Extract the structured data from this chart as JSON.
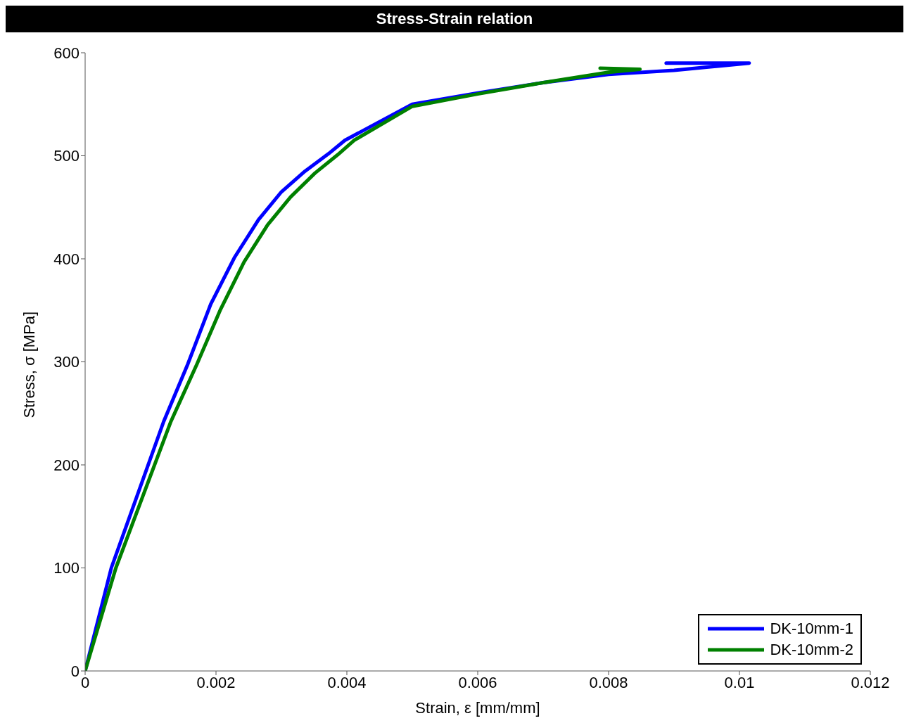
{
  "chart_data": {
    "type": "line",
    "title": "Stress-Strain relation",
    "xlabel": "Strain, ε [mm/mm]",
    "ylabel": "Stress, σ [MPa]",
    "xlim": [
      0,
      0.012
    ],
    "xticks": [
      0,
      0.002,
      0.004,
      0.006,
      0.008,
      0.01,
      0.012
    ],
    "ylim": [
      0,
      600
    ],
    "yticks": [
      0,
      100,
      200,
      300,
      400,
      500,
      600
    ],
    "grid": false,
    "legend": "bottom right",
    "marker": "none",
    "line_style": "solid",
    "series": [
      {
        "name": "DK-10mm-1",
        "color": "#0000ff",
        "x": [
          0,
          0.0004,
          0.0012,
          0.00157,
          0.00192,
          0.00228,
          0.00265,
          0.003,
          0.00336,
          0.00372,
          0.00397,
          0.005,
          0.006,
          0.007,
          0.008,
          0.009,
          0.0095,
          0.01015,
          0.00888
        ],
        "values": [
          0,
          100,
          242,
          298,
          356,
          401,
          438,
          465,
          485,
          502,
          515,
          550,
          561,
          571,
          579,
          583,
          586,
          590,
          590
        ]
      },
      {
        "name": "DK-10mm-2",
        "color": "#008000",
        "x": [
          0,
          0.00047,
          0.00131,
          0.00171,
          0.00207,
          0.00243,
          0.00279,
          0.00314,
          0.00351,
          0.00386,
          0.00411,
          0.005,
          0.006,
          0.007,
          0.008,
          0.00848,
          0.00787
        ],
        "values": [
          0,
          100,
          242,
          298,
          351,
          397,
          433,
          460,
          483,
          501,
          515,
          548,
          560,
          571,
          581,
          584,
          585
        ]
      }
    ]
  }
}
